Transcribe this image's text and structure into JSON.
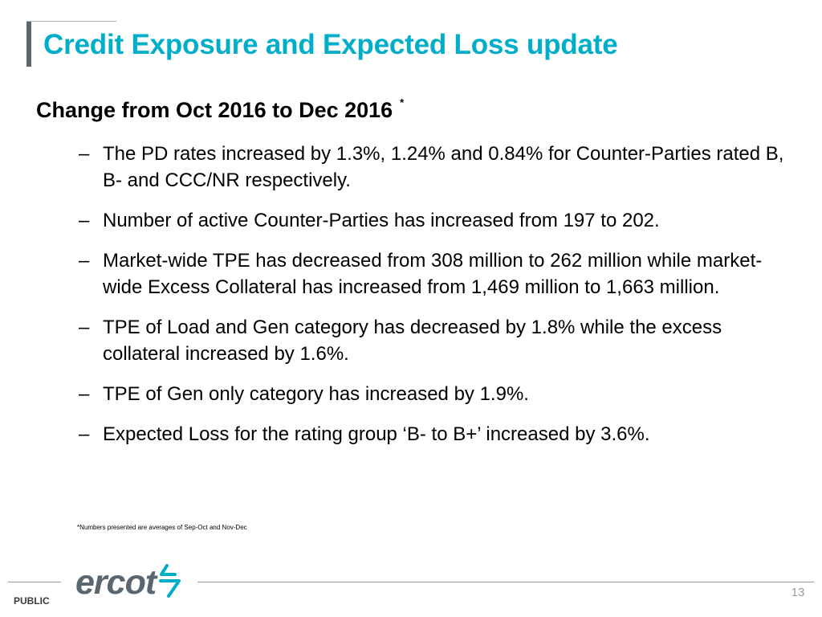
{
  "slide": {
    "title": "Credit Exposure and Expected Loss update",
    "heading": "Change from Oct 2016 to Dec 2016",
    "heading_marker": "*",
    "bullet_dash": "–",
    "bullets": [
      "The PD rates increased by 1.3%, 1.24% and 0.84% for Counter-Parties rated B, B- and CCC/NR respectively.",
      "Number of active Counter-Parties has increased from 197 to 202.",
      "Market-wide TPE has decreased from 308 million to 262 million while market-wide Excess Collateral has increased from 1,469 million to 1,663 million.",
      "TPE of Load and Gen category has decreased by 1.8% while the excess collateral increased by 1.6%.",
      "TPE of Gen only category has increased by 1.9%.",
      "Expected Loss for the rating group ‘B- to B+’ increased by 3.6%."
    ],
    "footnote": "*Numbers presented are averages of Sep-Oct and Nov-Dec"
  },
  "footer": {
    "logo_text": "ercot",
    "logo_icon": "ercot-lightning-mark-icon",
    "classification": "PUBLIC",
    "page_number": "13"
  },
  "colors": {
    "title": "#00aeca",
    "accent_bar": "#5b6770",
    "logo_text": "#5b6770",
    "logo_mark": "#00aeca"
  }
}
